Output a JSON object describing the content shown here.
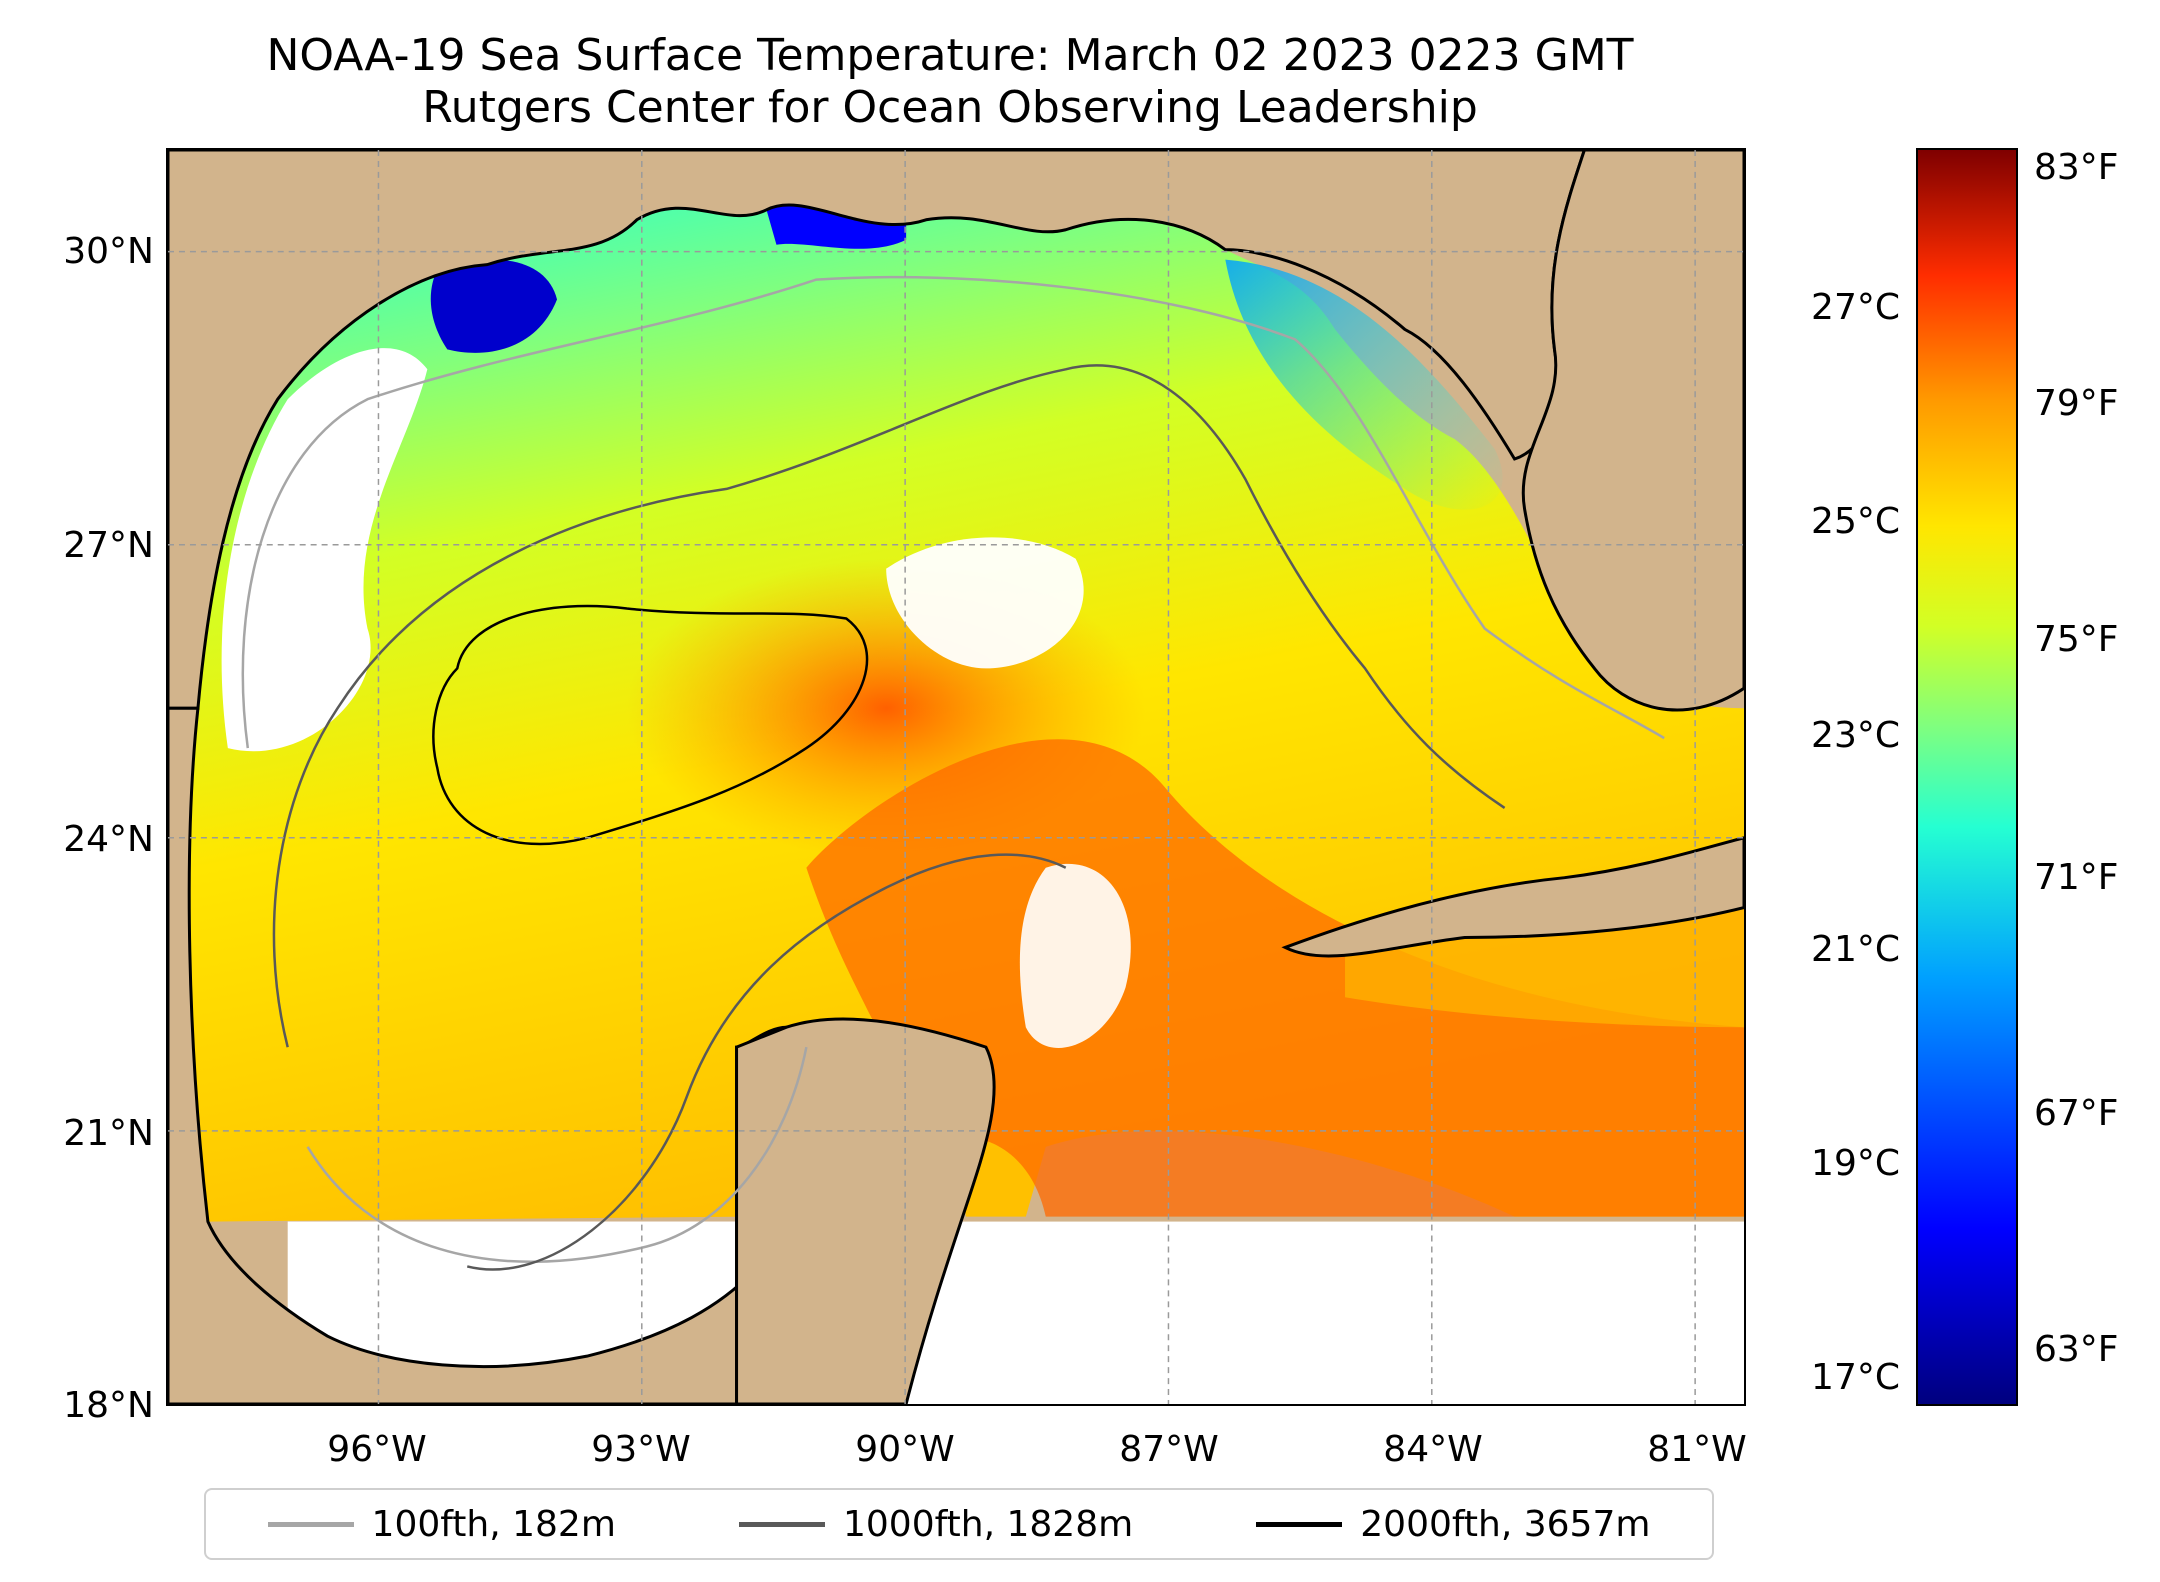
{
  "title": {
    "line1": "NOAA-19 Sea Surface Temperature: March 02 2023 0223 GMT",
    "line2": "Rutgers Center for Ocean Observing Leadership"
  },
  "map": {
    "lat_labels": [
      "30°N",
      "27°N",
      "24°N",
      "21°N",
      "18°N"
    ],
    "lon_labels": [
      "96°W",
      "93°W",
      "90°W",
      "87°W",
      "84°W",
      "81°W"
    ],
    "land_color": "#d2b48c",
    "cloud_color": "#ffffff",
    "grid": true,
    "grid_style": "dashed gray"
  },
  "colorbar": {
    "celsius_labels": [
      "27°C",
      "25°C",
      "23°C",
      "21°C",
      "19°C",
      "17°C"
    ],
    "fahrenheit_labels": [
      "83°F",
      "79°F",
      "75°F",
      "71°F",
      "67°F",
      "63°F"
    ],
    "colormap": "jet",
    "colors": [
      "#00007f",
      "#0000ff",
      "#00a0ff",
      "#25ffd2",
      "#7fff7f",
      "#d2ff25",
      "#ffe600",
      "#ff9a00",
      "#ff2d00",
      "#7f0000"
    ]
  },
  "legend": {
    "items": [
      {
        "label": "100fth, 182m",
        "color": "#a6a6a6"
      },
      {
        "label": "1000fth, 1828m",
        "color": "#595959"
      },
      {
        "label": "2000fth, 3657m",
        "color": "#000000"
      }
    ]
  }
}
